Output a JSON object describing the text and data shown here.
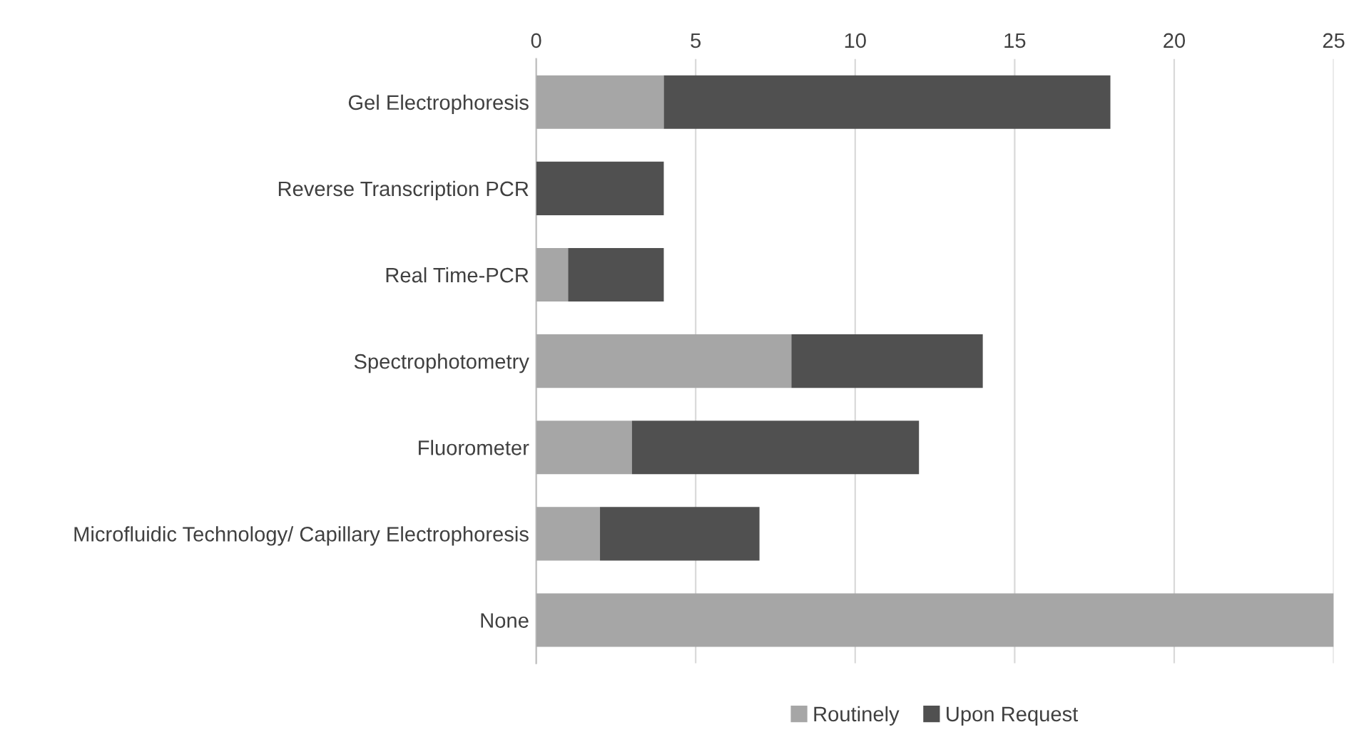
{
  "chart_data": {
    "type": "bar",
    "orientation": "horizontal",
    "stacked": true,
    "categories": [
      "Gel Electrophoresis",
      "Reverse Transcription PCR",
      "Real Time-PCR",
      "Spectrophotometry",
      "Fluorometer",
      "Microfluidic Technology/ Capillary Electrophoresis",
      "None"
    ],
    "series": [
      {
        "name": "Routinely",
        "color": "#a6a6a6",
        "values": [
          4,
          0,
          1,
          8,
          3,
          2,
          25
        ]
      },
      {
        "name": "Upon Request",
        "color": "#505050",
        "values": [
          14,
          4,
          3,
          6,
          9,
          5,
          0
        ]
      }
    ],
    "xlim": [
      0,
      25
    ],
    "xticks": [
      0,
      5,
      10,
      15,
      20,
      25
    ],
    "grid": "x",
    "legend": "bottom"
  }
}
